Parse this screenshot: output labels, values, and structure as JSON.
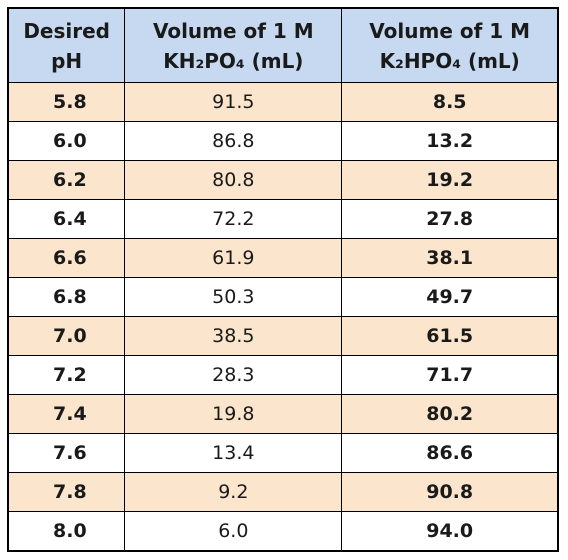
{
  "table": {
    "header": [
      [
        "Desired",
        "pH"
      ],
      [
        "Volume of 1 M",
        "KH₂PO₄ (mL)"
      ],
      [
        "Volume of 1 M",
        "K₂HPO₄ (mL)"
      ]
    ],
    "rows": [
      [
        "5.8",
        "91.5",
        "8.5"
      ],
      [
        "6.0",
        "86.8",
        "13.2"
      ],
      [
        "6.2",
        "80.8",
        "19.2"
      ],
      [
        "6.4",
        "72.2",
        "27.8"
      ],
      [
        "6.6",
        "61.9",
        "38.1"
      ],
      [
        "6.8",
        "50.3",
        "49.7"
      ],
      [
        "7.0",
        "38.5",
        "61.5"
      ],
      [
        "7.2",
        "28.3",
        "71.7"
      ],
      [
        "7.4",
        "19.8",
        "80.2"
      ],
      [
        "7.6",
        "13.4",
        "86.6"
      ],
      [
        "7.8",
        "9.2",
        "90.8"
      ],
      [
        "8.0",
        "6.0",
        "94.0"
      ]
    ]
  }
}
